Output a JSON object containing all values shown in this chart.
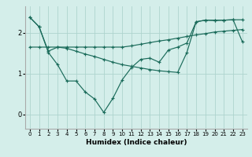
{
  "x": [
    0,
    1,
    2,
    3,
    4,
    5,
    6,
    7,
    8,
    9,
    10,
    11,
    12,
    13,
    14,
    15,
    16,
    17,
    18,
    19,
    20,
    21,
    22,
    23
  ],
  "line1": [
    2.38,
    2.15,
    1.52,
    1.22,
    0.82,
    0.82,
    0.55,
    0.38,
    0.05,
    0.4,
    0.85,
    1.15,
    1.35,
    1.38,
    1.28,
    1.58,
    1.65,
    1.75,
    2.27,
    2.31,
    2.31,
    2.31,
    2.32,
    1.78
  ],
  "line2": [
    2.38,
    2.15,
    1.55,
    1.65,
    1.62,
    1.55,
    1.48,
    1.42,
    1.35,
    1.28,
    1.22,
    1.18,
    1.14,
    1.1,
    1.07,
    1.05,
    1.03,
    1.52,
    2.27,
    2.31,
    2.3,
    2.31,
    2.32,
    2.32
  ],
  "line3": [
    1.65,
    1.65,
    1.65,
    1.65,
    1.65,
    1.65,
    1.65,
    1.65,
    1.65,
    1.65,
    1.65,
    1.68,
    1.72,
    1.76,
    1.8,
    1.83,
    1.87,
    1.91,
    1.95,
    1.98,
    2.02,
    2.04,
    2.06,
    2.08
  ],
  "line_color": "#1a6b5a",
  "bg_color": "#d4eeea",
  "grid_color": "#aed4ce",
  "xlabel": "Humidex (Indice chaleur)",
  "xlim": [
    -0.5,
    23.5
  ],
  "ylim": [
    -0.35,
    2.65
  ],
  "yticks": [
    0,
    1,
    2
  ],
  "xticks": [
    0,
    1,
    2,
    3,
    4,
    5,
    6,
    7,
    8,
    9,
    10,
    11,
    12,
    13,
    14,
    15,
    16,
    17,
    18,
    19,
    20,
    21,
    22,
    23
  ]
}
